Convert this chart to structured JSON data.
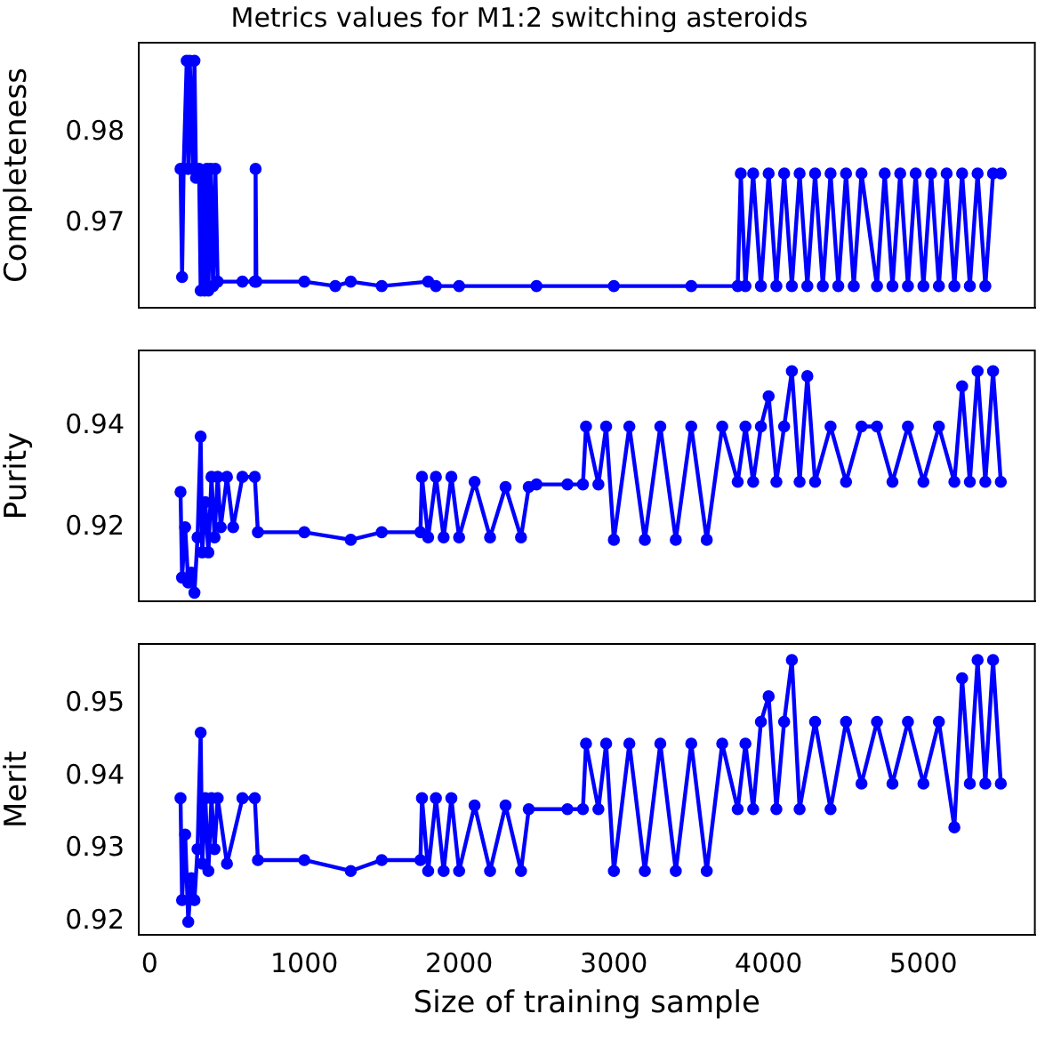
{
  "chart_data": [
    {
      "type": "line",
      "title": "Metrics values for M1:2 switching asteroids",
      "ylabel": "Completeness",
      "marker": "circle",
      "tick_labels": "y",
      "xlim": [
        -70,
        5720
      ],
      "xticks": [
        0,
        1000,
        2000,
        3000,
        4000,
        5000
      ],
      "ylim": [
        0.9606,
        0.99
      ],
      "yticks": [
        0.97,
        0.98
      ],
      "x": [
        200,
        210,
        220,
        240,
        250,
        260,
        280,
        290,
        300,
        320,
        330,
        345,
        355,
        370,
        380,
        395,
        410,
        425,
        440,
        600,
        680,
        685,
        690,
        1000,
        1200,
        1300,
        1500,
        1800,
        1850,
        2000,
        2500,
        3000,
        3500,
        3800,
        3820,
        3850,
        3900,
        3950,
        4000,
        4050,
        4100,
        4150,
        4200,
        4250,
        4300,
        4350,
        4400,
        4450,
        4500,
        4550,
        4600,
        4700,
        4750,
        4800,
        4850,
        4900,
        4950,
        5000,
        5050,
        5100,
        5150,
        5200,
        5250,
        5300,
        5350,
        5400,
        5450,
        5500
      ],
      "series": [
        {
          "color": "#0000ff",
          "values": [
            0.976,
            0.964,
            0.976,
            0.988,
            0.976,
            0.988,
            0.976,
            0.988,
            0.975,
            0.976,
            0.9625,
            0.975,
            0.9625,
            0.976,
            0.9625,
            0.976,
            0.963,
            0.976,
            0.9635,
            0.9635,
            0.9635,
            0.976,
            0.9635,
            0.9635,
            0.963,
            0.9635,
            0.963,
            0.9635,
            0.963,
            0.963,
            0.963,
            0.963,
            0.963,
            0.963,
            0.9755,
            0.963,
            0.9755,
            0.963,
            0.9755,
            0.963,
            0.9755,
            0.963,
            0.9755,
            0.963,
            0.9755,
            0.963,
            0.9755,
            0.963,
            0.9755,
            0.963,
            0.9755,
            0.963,
            0.9755,
            0.963,
            0.9755,
            0.963,
            0.9755,
            0.963,
            0.9755,
            0.963,
            0.9755,
            0.963,
            0.9755,
            0.963,
            0.9755,
            0.963,
            0.9755,
            0.9755
          ]
        }
      ]
    },
    {
      "type": "line",
      "ylabel": "Purity",
      "marker": "circle",
      "tick_labels": "y",
      "xlim": [
        -70,
        5720
      ],
      "xticks": [
        0,
        1000,
        2000,
        3000,
        4000,
        5000
      ],
      "ylim": [
        0.9053,
        0.9551
      ],
      "yticks": [
        0.92,
        0.94
      ],
      "x": [
        200,
        210,
        230,
        250,
        270,
        290,
        310,
        330,
        340,
        360,
        380,
        400,
        420,
        440,
        460,
        500,
        540,
        600,
        680,
        700,
        1000,
        1300,
        1500,
        1750,
        1760,
        1800,
        1850,
        1900,
        1950,
        2000,
        2100,
        2200,
        2300,
        2400,
        2450,
        2500,
        2700,
        2800,
        2820,
        2900,
        2950,
        3000,
        3100,
        3200,
        3300,
        3400,
        3500,
        3600,
        3700,
        3800,
        3850,
        3900,
        3950,
        4000,
        4050,
        4100,
        4150,
        4200,
        4250,
        4300,
        4400,
        4500,
        4600,
        4700,
        4800,
        4900,
        5000,
        5100,
        5200,
        5250,
        5300,
        5350,
        5400,
        5450,
        5500
      ],
      "series": [
        {
          "color": "#0000ff",
          "values": [
            0.927,
            0.91,
            0.92,
            0.909,
            0.911,
            0.907,
            0.918,
            0.938,
            0.915,
            0.925,
            0.915,
            0.93,
            0.918,
            0.93,
            0.92,
            0.93,
            0.92,
            0.93,
            0.93,
            0.919,
            0.919,
            0.9175,
            0.919,
            0.919,
            0.93,
            0.918,
            0.93,
            0.918,
            0.93,
            0.918,
            0.929,
            0.918,
            0.928,
            0.918,
            0.928,
            0.9285,
            0.9285,
            0.9285,
            0.94,
            0.9285,
            0.94,
            0.9175,
            0.94,
            0.9175,
            0.94,
            0.9175,
            0.94,
            0.9175,
            0.94,
            0.929,
            0.94,
            0.929,
            0.94,
            0.946,
            0.929,
            0.94,
            0.951,
            0.929,
            0.95,
            0.929,
            0.94,
            0.929,
            0.94,
            0.94,
            0.929,
            0.94,
            0.929,
            0.94,
            0.929,
            0.948,
            0.929,
            0.951,
            0.929,
            0.951,
            0.929
          ]
        }
      ]
    },
    {
      "type": "line",
      "ylabel": "Merit",
      "xlabel": "Size of training sample",
      "marker": "circle",
      "xlim": [
        -70,
        5720
      ],
      "xticks": [
        0,
        1000,
        2000,
        3000,
        4000,
        5000
      ],
      "ylim": [
        0.9182,
        0.9582
      ],
      "yticks": [
        0.92,
        0.93,
        0.94,
        0.95
      ],
      "x": [
        200,
        210,
        230,
        250,
        270,
        290,
        310,
        330,
        340,
        360,
        380,
        400,
        420,
        440,
        500,
        600,
        680,
        700,
        1000,
        1300,
        1500,
        1750,
        1760,
        1800,
        1850,
        1900,
        1950,
        2000,
        2100,
        2200,
        2300,
        2400,
        2450,
        2700,
        2800,
        2820,
        2900,
        2950,
        3000,
        3100,
        3200,
        3300,
        3400,
        3500,
        3600,
        3700,
        3800,
        3850,
        3900,
        3950,
        4000,
        4050,
        4100,
        4150,
        4200,
        4300,
        4400,
        4500,
        4600,
        4700,
        4800,
        4900,
        5000,
        5100,
        5200,
        5250,
        5300,
        5350,
        5400,
        5450,
        5500
      ],
      "series": [
        {
          "color": "#0000ff",
          "values": [
            0.937,
            0.923,
            0.932,
            0.92,
            0.926,
            0.923,
            0.93,
            0.946,
            0.928,
            0.937,
            0.927,
            0.937,
            0.93,
            0.937,
            0.928,
            0.937,
            0.937,
            0.9285,
            0.9285,
            0.927,
            0.9285,
            0.9285,
            0.937,
            0.927,
            0.937,
            0.927,
            0.937,
            0.927,
            0.936,
            0.927,
            0.936,
            0.927,
            0.9355,
            0.9355,
            0.9355,
            0.9445,
            0.9355,
            0.9445,
            0.927,
            0.9445,
            0.927,
            0.9445,
            0.927,
            0.9445,
            0.927,
            0.9445,
            0.9355,
            0.9445,
            0.9355,
            0.9475,
            0.951,
            0.9355,
            0.9475,
            0.956,
            0.9355,
            0.9475,
            0.9355,
            0.9475,
            0.939,
            0.9475,
            0.939,
            0.9475,
            0.939,
            0.9475,
            0.933,
            0.9535,
            0.939,
            0.956,
            0.939,
            0.956,
            0.939
          ]
        }
      ]
    }
  ]
}
